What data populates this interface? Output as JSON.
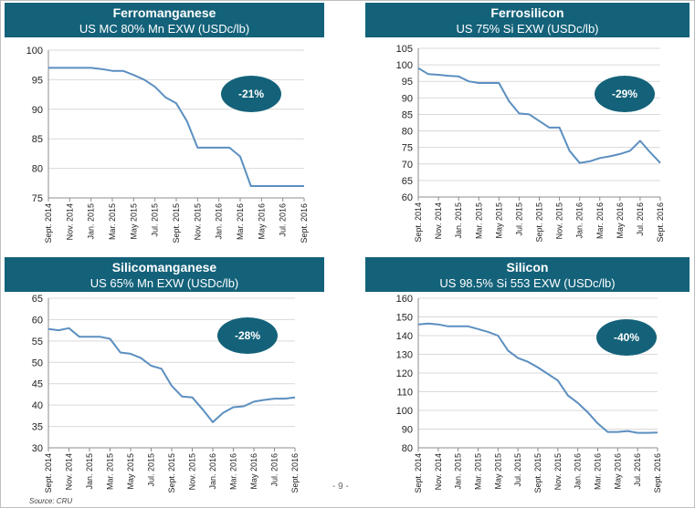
{
  "page": {
    "source": "Source: CRU",
    "page_number": "- 9 -"
  },
  "chart_data": [
    {
      "type": "line",
      "title": "Ferromanganese",
      "subtitle": "US MC 80% Mn EXW (USDc/lb)",
      "badge": "-21%",
      "color": "#5b8fc0",
      "ylim": [
        75,
        100
      ],
      "yticks": [
        75,
        80,
        85,
        90,
        95,
        100
      ],
      "xlabels": [
        "Sept. 2014",
        "Nov. 2014",
        "Jan. 2015",
        "Mar. 2015",
        "May 2015",
        "Jul. 2015",
        "Sept. 2015",
        "Nov. 2015",
        "Jan. 2016",
        "Mar. 2016",
        "May 2016",
        "Jul. 2016",
        "Sept. 2016"
      ],
      "x": [
        0,
        1,
        2,
        2.5,
        3,
        3.5,
        4,
        4.5,
        5,
        5.5,
        6,
        6.5,
        7,
        7.5,
        8,
        8.5,
        9,
        9.5,
        10,
        11,
        12
      ],
      "values": [
        97,
        97,
        97,
        96.8,
        96.5,
        96.5,
        95.8,
        95,
        93.8,
        92,
        91,
        88,
        83.5,
        83.5,
        83.5,
        83.5,
        82,
        77,
        77,
        77,
        77
      ]
    },
    {
      "type": "line",
      "title": "Ferrosilicon",
      "subtitle": "US 75% Si EXW (USDc/lb)",
      "badge": "-29%",
      "color": "#5b8fc0",
      "ylim": [
        60,
        105
      ],
      "yticks": [
        60,
        65,
        70,
        75,
        80,
        85,
        90,
        95,
        100,
        105
      ],
      "xlabels": [
        "Sept. 2014",
        "Nov. 2014",
        "Jan. 2015",
        "Mar. 2015",
        "May 2015",
        "Jul. 2015",
        "Sept. 2015",
        "Nov. 2015",
        "Jan. 2016",
        "Mar. 2016",
        "May 2016",
        "Jul. 2016",
        "Sept. 2016"
      ],
      "x": [
        0,
        0.5,
        1,
        1.5,
        2,
        2.5,
        3,
        3.5,
        4,
        4.5,
        5,
        5.5,
        6,
        6.5,
        7,
        7.5,
        8,
        8.5,
        9,
        9.5,
        10,
        10.5,
        11,
        11.5,
        12
      ],
      "values": [
        99,
        97.2,
        97,
        96.7,
        96.5,
        95,
        94.5,
        94.5,
        94.5,
        89,
        85.3,
        85,
        83,
        81,
        81,
        74,
        70.3,
        70.8,
        71.8,
        72.3,
        73,
        74,
        77,
        73.5,
        70.3
      ]
    },
    {
      "type": "line",
      "title": "Silicomanganese",
      "subtitle": "US 65% Mn EXW (USDc/lb)",
      "badge": "-28%",
      "color": "#5b8fc0",
      "ylim": [
        30,
        65
      ],
      "yticks": [
        30,
        35,
        40,
        45,
        50,
        55,
        60,
        65
      ],
      "xlabels": [
        "Sept. 2014",
        "Nov. 2014",
        "Jan. 2015",
        "Mar. 2015",
        "May 2015",
        "Jul. 2015",
        "Sept. 2015",
        "Nov. 2015",
        "Jan. 2016",
        "Mar. 2016",
        "May 2016",
        "Jul. 2016",
        "Sept. 2016"
      ],
      "x": [
        0,
        0.5,
        1,
        1.5,
        2,
        2.5,
        3,
        3.5,
        4,
        4.5,
        5,
        5.5,
        6,
        6.5,
        7,
        7.5,
        8,
        8.5,
        9,
        9.5,
        10,
        10.5,
        11,
        11.5,
        12
      ],
      "values": [
        57.8,
        57.5,
        58,
        56,
        56,
        56,
        55.5,
        52.3,
        52,
        51,
        49.2,
        48.5,
        44.5,
        42,
        41.8,
        39,
        36,
        38.2,
        39.5,
        39.7,
        40.8,
        41.2,
        41.5,
        41.5,
        41.8
      ]
    },
    {
      "type": "line",
      "title": "Silicon",
      "subtitle": "US  98.5% Si  553 EXW (USDc/lb)",
      "badge": "-40%",
      "color": "#5b8fc0",
      "ylim": [
        80,
        160
      ],
      "yticks": [
        80,
        90,
        100,
        110,
        120,
        130,
        140,
        150,
        160
      ],
      "xlabels": [
        "Sept. 2014",
        "Nov. 2014",
        "Jan. 2015",
        "Mar. 2015",
        "May 2015",
        "Jul. 2015",
        "Sept. 2015",
        "Nov. 2015",
        "Jan. 2016",
        "Mar. 2016",
        "May 2016",
        "Jul. 2016",
        "Sept. 2016"
      ],
      "x": [
        0,
        0.5,
        1,
        1.5,
        2,
        2.5,
        3,
        3.5,
        4,
        4.5,
        5,
        5.5,
        6,
        6.5,
        7,
        7.5,
        8,
        8.5,
        9,
        9.5,
        10,
        10.5,
        11,
        11.5,
        12
      ],
      "values": [
        146,
        146.5,
        146,
        145,
        145,
        145,
        143.5,
        142,
        140,
        132,
        128,
        126,
        123,
        119.5,
        116,
        108,
        104,
        99,
        93,
        88.5,
        88.5,
        89,
        88,
        88,
        88.2
      ]
    }
  ]
}
